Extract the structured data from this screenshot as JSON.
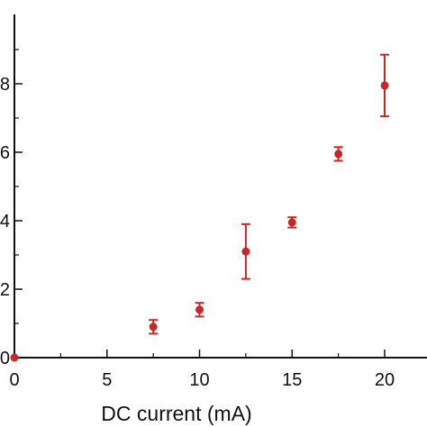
{
  "chart_data": {
    "type": "scatter",
    "title": "",
    "xlabel": "DC current (mA)",
    "ylabel": "",
    "xlim": [
      0,
      23
    ],
    "ylim": [
      0,
      10
    ],
    "x_ticks": [
      0,
      5,
      10,
      15,
      20
    ],
    "x_tick_labels": [
      "0",
      "5",
      "10",
      "15",
      "20"
    ],
    "y_ticks": [
      0,
      2,
      4,
      6,
      8
    ],
    "y_tick_labels_visible": [
      "0",
      "2",
      "4",
      "6",
      "8"
    ],
    "grid": false,
    "marker_color": "#c62828",
    "points": [
      {
        "x": 7.5,
        "y": 0.9,
        "err": 0.2
      },
      {
        "x": 10.0,
        "y": 1.4,
        "err": 0.2
      },
      {
        "x": 12.5,
        "y": 3.1,
        "err": 0.8
      },
      {
        "x": 15.0,
        "y": 3.95,
        "err": 0.15
      },
      {
        "x": 17.5,
        "y": 5.95,
        "err": 0.2
      },
      {
        "x": 20.0,
        "y": 7.95,
        "err": 0.9
      }
    ],
    "origin_point": {
      "x": 0,
      "y": 0
    }
  }
}
